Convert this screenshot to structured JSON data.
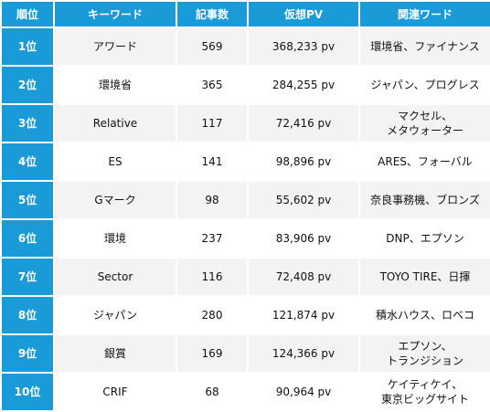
{
  "headers": {
    "rank": "順位",
    "keyword": "キーワード",
    "articles": "記事数",
    "pv": "仮想PV",
    "related": "関連ワード"
  },
  "rows": [
    {
      "rank": "1位",
      "keyword": "アワード",
      "articles": "569",
      "pv": "368,233 pv",
      "related": [
        "環境省、ファイナンス"
      ]
    },
    {
      "rank": "2位",
      "keyword": "環境省",
      "articles": "365",
      "pv": "284,255 pv",
      "related": [
        "ジャパン、プログレス"
      ]
    },
    {
      "rank": "3位",
      "keyword": "Relative",
      "articles": "117",
      "pv": "72,416 pv",
      "related": [
        "マクセル、",
        "メタウォーター"
      ]
    },
    {
      "rank": "4位",
      "keyword": "ES",
      "articles": "141",
      "pv": "98,896 pv",
      "related": [
        "ARES、フォーバル"
      ]
    },
    {
      "rank": "5位",
      "keyword": "Gマーク",
      "articles": "98",
      "pv": "55,602 pv",
      "related": [
        "奈良事務機、ブロンズ"
      ]
    },
    {
      "rank": "6位",
      "keyword": "環境",
      "articles": "237",
      "pv": "83,906 pv",
      "related": [
        "DNP、エプソン"
      ]
    },
    {
      "rank": "7位",
      "keyword": "Sector",
      "articles": "116",
      "pv": "72,408 pv",
      "related": [
        "TOYO TIRE、日揮"
      ]
    },
    {
      "rank": "8位",
      "keyword": "ジャパン",
      "articles": "280",
      "pv": "121,874 pv",
      "related": [
        "積水ハウス、ロベコ"
      ]
    },
    {
      "rank": "9位",
      "keyword": "銀賞",
      "articles": "169",
      "pv": "124,366 pv",
      "related": [
        "エプソン、",
        "トランジション"
      ]
    },
    {
      "rank": "10位",
      "keyword": "CRIF",
      "articles": "68",
      "pv": "90,964 pv",
      "related": [
        "ケイティケイ、",
        "東京ビッグサイト"
      ]
    }
  ]
}
